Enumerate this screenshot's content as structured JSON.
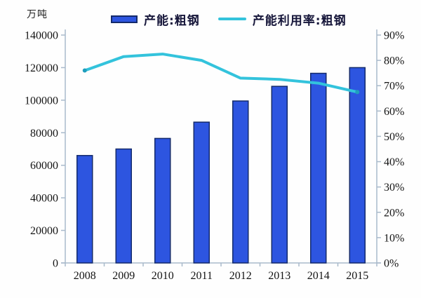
{
  "colors": {
    "bar_fill": "#2d55e0",
    "bar_border": "#142a6b",
    "line": "#33c3dc",
    "line_end": "#1f9ebd",
    "axis": "#a9bacb",
    "tick_text": "#141414",
    "legend_text": "#16163a",
    "background": "#fefefe"
  },
  "chart_data": {
    "type": "bar",
    "subtype": "bar-line-combo",
    "title": "",
    "categories": [
      "2008",
      "2009",
      "2010",
      "2011",
      "2012",
      "2013",
      "2014",
      "2015"
    ],
    "series": [
      {
        "name": "产能:粗钢",
        "type": "bar",
        "axis": "left",
        "unit": "万吨",
        "values": [
          66000,
          70000,
          76500,
          86500,
          99500,
          108500,
          116500,
          120000
        ]
      },
      {
        "name": "产能利用率:粗钢",
        "type": "line",
        "axis": "right",
        "unit": "%",
        "values": [
          76,
          81.5,
          82.5,
          80,
          73,
          72.5,
          71,
          67.5
        ]
      }
    ],
    "left_axis": {
      "min": 0,
      "max": 140000,
      "ticks": [
        0,
        20000,
        40000,
        60000,
        80000,
        100000,
        120000,
        140000
      ],
      "unit_label": "万吨"
    },
    "right_axis": {
      "min": 0,
      "max": 90,
      "ticks": [
        0,
        10,
        20,
        30,
        40,
        50,
        60,
        70,
        80,
        90
      ],
      "suffix": "%"
    },
    "grid": false,
    "legend_position": "top"
  }
}
